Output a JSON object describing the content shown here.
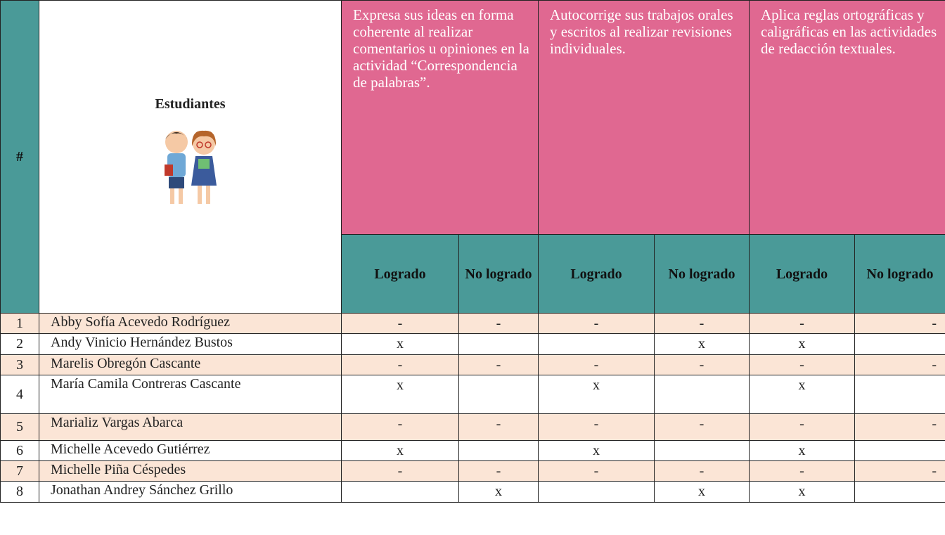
{
  "header": {
    "number": "#",
    "students": "Estudiantes",
    "criteria": [
      "Expresa sus ideas en forma coherente al realizar comentarios u opiniones en la actividad “Correspondencia de palabras”.",
      "Autocorrige sus trabajos orales y escritos al realizar revisiones individuales.",
      "Aplica reglas ortográficas y caligráficas en las actividades de redacción textuales."
    ],
    "subheaders": [
      "Logrado",
      "No logrado",
      "Logrado",
      "No logrado",
      "Logrado",
      "No logrado"
    ]
  },
  "rows": [
    {
      "number": "1",
      "name": "Abby Sofía Acevedo Rodríguez",
      "marks": [
        "-",
        "-",
        "-",
        "-",
        "-",
        "-"
      ]
    },
    {
      "number": "2",
      "name": "Andy Vinicio Hernández Bustos",
      "marks": [
        "x",
        null,
        null,
        "x",
        "x",
        null
      ]
    },
    {
      "number": "3",
      "name": "Marelis Obregón Cascante",
      "marks": [
        "-",
        "-",
        "-",
        "-",
        "-",
        "-"
      ]
    },
    {
      "number": "4",
      "name": "María Camila Contreras Cascante",
      "marks": [
        "x",
        null,
        "x",
        null,
        "x",
        null
      ]
    },
    {
      "number": "5",
      "name": "Marializ Vargas Abarca",
      "marks": [
        "-",
        "-",
        "-",
        "-",
        "-",
        "-"
      ]
    },
    {
      "number": "6",
      "name": "Michelle Acevedo Gutiérrez",
      "marks": [
        "x",
        null,
        "x",
        null,
        "x",
        null
      ]
    },
    {
      "number": "7",
      "name": "Michelle Piña Céspedes",
      "marks": [
        "-",
        "-",
        "-",
        "-",
        "-",
        "-"
      ]
    },
    {
      "number": "8",
      "name": "Jonathan Andrey Sánchez Grillo",
      "marks": [
        null,
        "x",
        null,
        "x",
        "x",
        null
      ]
    }
  ]
}
